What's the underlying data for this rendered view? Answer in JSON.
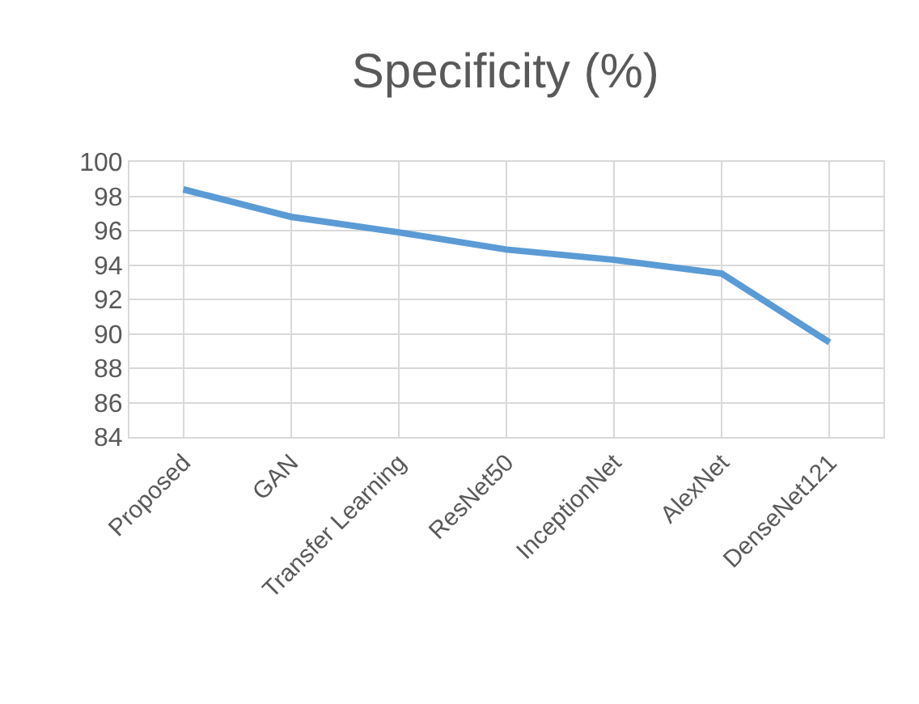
{
  "chart_data": {
    "type": "line",
    "title": "Specificity (%)",
    "categories": [
      "Proposed",
      "GAN",
      "Transfer Learning",
      "ResNet50",
      "InceptionNet",
      "AlexNet",
      "DenseNet121"
    ],
    "series": [
      {
        "color": "#5b9bd5",
        "values": [
          98.4,
          96.8,
          95.9,
          94.9,
          94.3,
          93.5,
          89.5
        ]
      }
    ],
    "ylim": [
      84,
      100
    ],
    "yticks": [
      84,
      86,
      88,
      90,
      92,
      94,
      96,
      98,
      100
    ],
    "grid": true,
    "marker": "none",
    "line_style": "solid"
  }
}
